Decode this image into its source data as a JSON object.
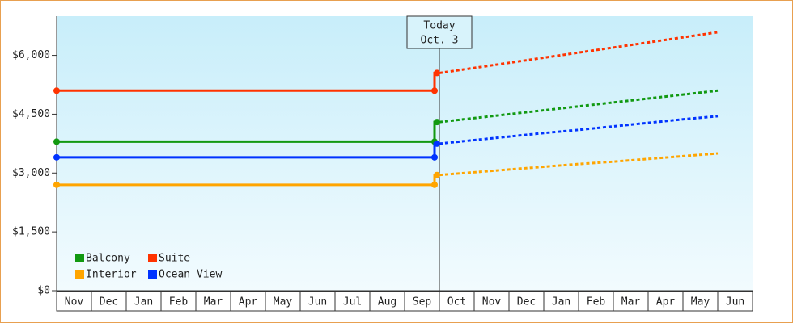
{
  "chart_data": {
    "type": "line",
    "categories": [
      "Nov",
      "Dec",
      "Jan",
      "Feb",
      "Mar",
      "Apr",
      "May",
      "Jun",
      "Jul",
      "Aug",
      "Sep",
      "Oct",
      "Nov",
      "Dec",
      "Jan",
      "Feb",
      "Mar",
      "Apr",
      "May",
      "Jun"
    ],
    "today_label": [
      "Today",
      "Oct. 3"
    ],
    "series": [
      {
        "name": "Balcony",
        "color": "#119911",
        "values": [
          3800,
          3800,
          3800,
          3800,
          3800,
          3800,
          3800,
          3800,
          3800,
          3800,
          3800,
          null,
          null,
          null,
          null,
          null,
          null,
          null,
          null,
          null
        ],
        "forecast": [
          null,
          null,
          null,
          null,
          null,
          null,
          null,
          null,
          null,
          null,
          null,
          4300,
          4400,
          4500,
          4600,
          4700,
          4800,
          4900,
          5000,
          5100
        ]
      },
      {
        "name": "Suite",
        "color": "#ff3300",
        "values": [
          5100,
          5100,
          5100,
          5100,
          5100,
          5100,
          5100,
          5100,
          5100,
          5100,
          5100,
          null,
          null,
          null,
          null,
          null,
          null,
          null,
          null,
          null
        ],
        "forecast": [
          null,
          null,
          null,
          null,
          null,
          null,
          null,
          null,
          null,
          null,
          null,
          5550,
          5680,
          5810,
          5940,
          6070,
          6200,
          6330,
          6460,
          6590
        ]
      },
      {
        "name": "Interior",
        "color": "#ffa500",
        "values": [
          2700,
          2700,
          2700,
          2700,
          2700,
          2700,
          2700,
          2700,
          2700,
          2700,
          2700,
          null,
          null,
          null,
          null,
          null,
          null,
          null,
          null,
          null
        ],
        "forecast": [
          null,
          null,
          null,
          null,
          null,
          null,
          null,
          null,
          null,
          null,
          null,
          2950,
          3020,
          3090,
          3160,
          3230,
          3290,
          3360,
          3430,
          3500
        ]
      },
      {
        "name": "Ocean View",
        "color": "#0033ff",
        "values": [
          3400,
          3400,
          3400,
          3400,
          3400,
          3400,
          3400,
          3400,
          3400,
          3400,
          3400,
          null,
          null,
          null,
          null,
          null,
          null,
          null,
          null,
          null
        ],
        "forecast": [
          null,
          null,
          null,
          null,
          null,
          null,
          null,
          null,
          null,
          null,
          null,
          3750,
          3840,
          3930,
          4020,
          4100,
          4190,
          4280,
          4370,
          4450
        ]
      }
    ],
    "ylim": [
      0,
      7000
    ],
    "yticks": [
      {
        "value": 0,
        "label": "$0"
      },
      {
        "value": 1500,
        "label": "$1,500"
      },
      {
        "value": 3000,
        "label": "$3,000"
      },
      {
        "value": 4500,
        "label": "$4,500"
      },
      {
        "value": 6000,
        "label": "$6,000"
      }
    ],
    "legend": "bottom-left"
  }
}
